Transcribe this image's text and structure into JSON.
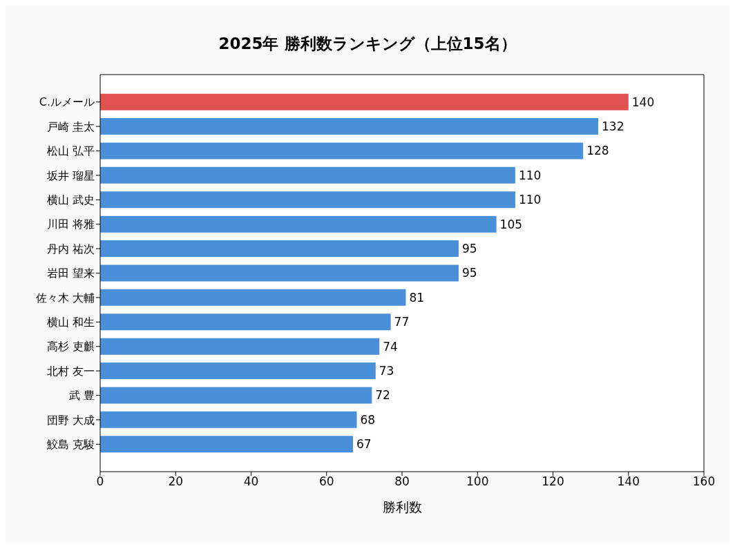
{
  "chart_data": {
    "type": "bar",
    "orientation": "horizontal",
    "title": "2025年 勝利数ランキング（上位15名）",
    "xlabel": "勝利数",
    "categories": [
      "C.ルメール",
      "戸崎 圭太",
      "松山 弘平",
      "坂井 瑠星",
      "横山 武史",
      "川田 将雅",
      "丹内 祐次",
      "岩田 望来",
      "佐々木 大輔",
      "横山 和生",
      "高杉 吏麒",
      "北村 友一",
      "武 豊",
      "団野 大成",
      "鮫島 克駿"
    ],
    "values": [
      140,
      132,
      128,
      110,
      110,
      105,
      95,
      95,
      81,
      77,
      74,
      73,
      72,
      68,
      67
    ],
    "colors": [
      "#e05252",
      "#4a90d9",
      "#4a90d9",
      "#4a90d9",
      "#4a90d9",
      "#4a90d9",
      "#4a90d9",
      "#4a90d9",
      "#4a90d9",
      "#4a90d9",
      "#4a90d9",
      "#4a90d9",
      "#4a90d9",
      "#4a90d9",
      "#4a90d9"
    ],
    "xlim": [
      0,
      160
    ],
    "xticks": [
      0,
      20,
      40,
      60,
      80,
      100,
      120,
      140,
      160
    ],
    "grid": false,
    "data_labels": true
  }
}
